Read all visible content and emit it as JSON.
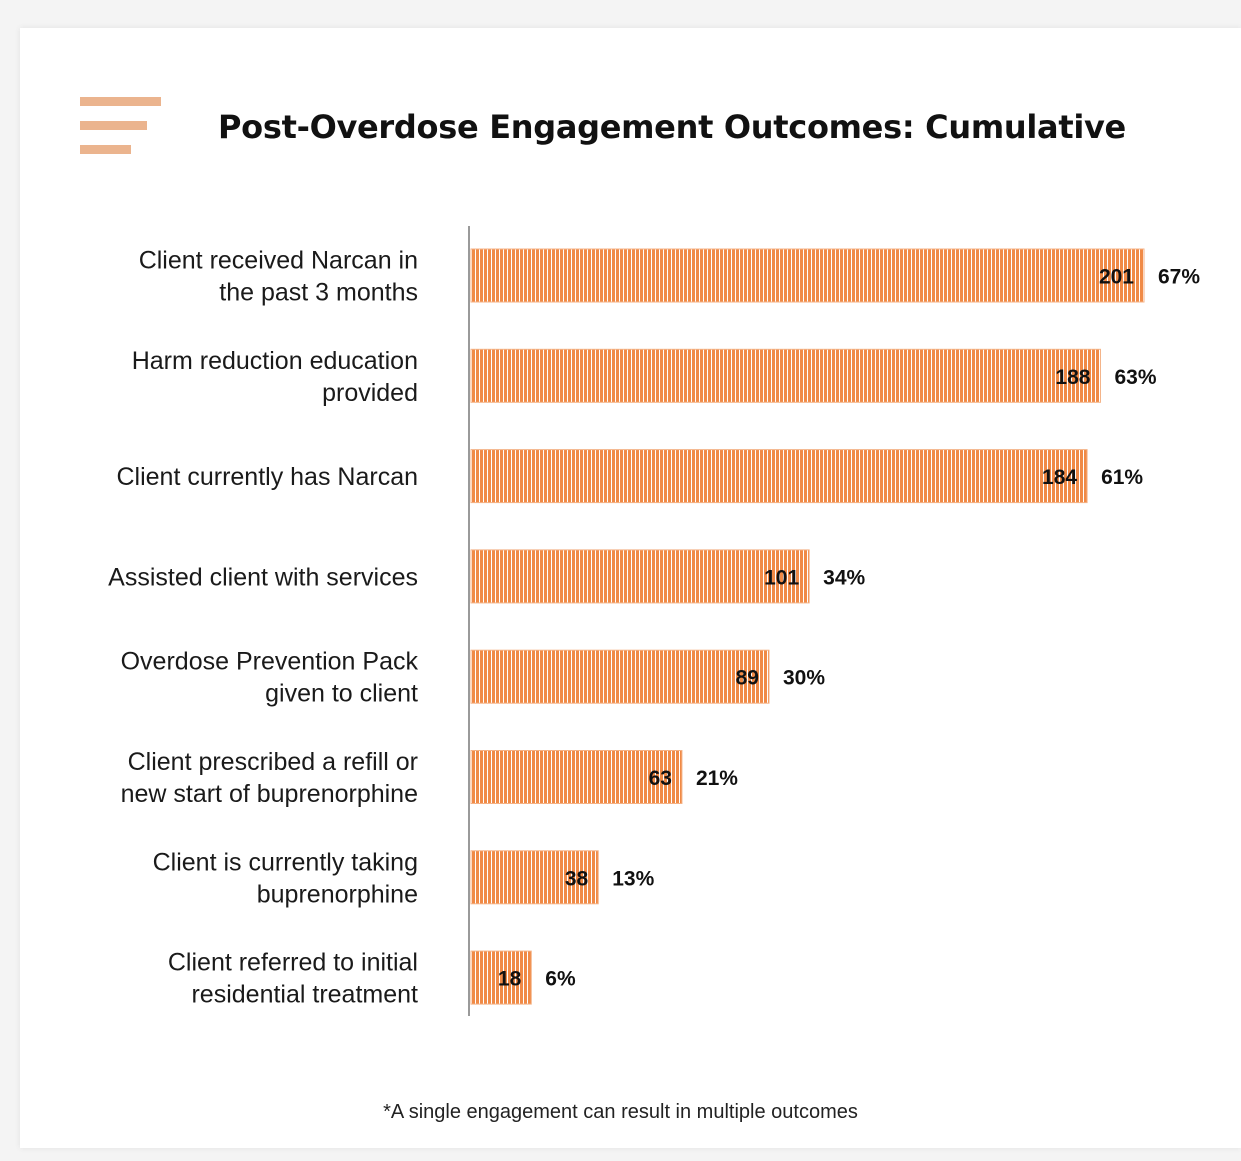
{
  "title": "Post-Overdose Engagement Outcomes: Cumulative",
  "footnote": "*A single engagement can result in multiple outcomes",
  "colors": {
    "bar": "#f08a46",
    "bar_stripe": "#ffffff",
    "bar_border": "#f4b286",
    "axis": "#9a9a9a",
    "accent_lines": "#ebb48e"
  },
  "header_icon": "menu-lines-icon",
  "chart_data": {
    "type": "bar",
    "orientation": "horizontal",
    "title": "Post-Overdose Engagement Outcomes: Cumulative",
    "categories": [
      [
        "Client received Narcan in",
        "the past 3 months"
      ],
      [
        "Harm reduction education",
        "provided"
      ],
      [
        "Client currently has Narcan"
      ],
      [
        "Assisted client with services"
      ],
      [
        "Overdose Prevention Pack",
        "given to client"
      ],
      [
        "Client prescribed a refill or",
        "new start of buprenorphine"
      ],
      [
        "Client is currently taking",
        "buprenorphine"
      ],
      [
        "Client referred to initial",
        "residential treatment"
      ]
    ],
    "values": [
      201,
      188,
      184,
      101,
      89,
      63,
      38,
      18
    ],
    "percent_labels": [
      "67%",
      "63%",
      "61%",
      "34%",
      "30%",
      "21%",
      "13%",
      "6%"
    ],
    "xlim": [
      0,
      201
    ],
    "grid": false,
    "legend": "none"
  }
}
